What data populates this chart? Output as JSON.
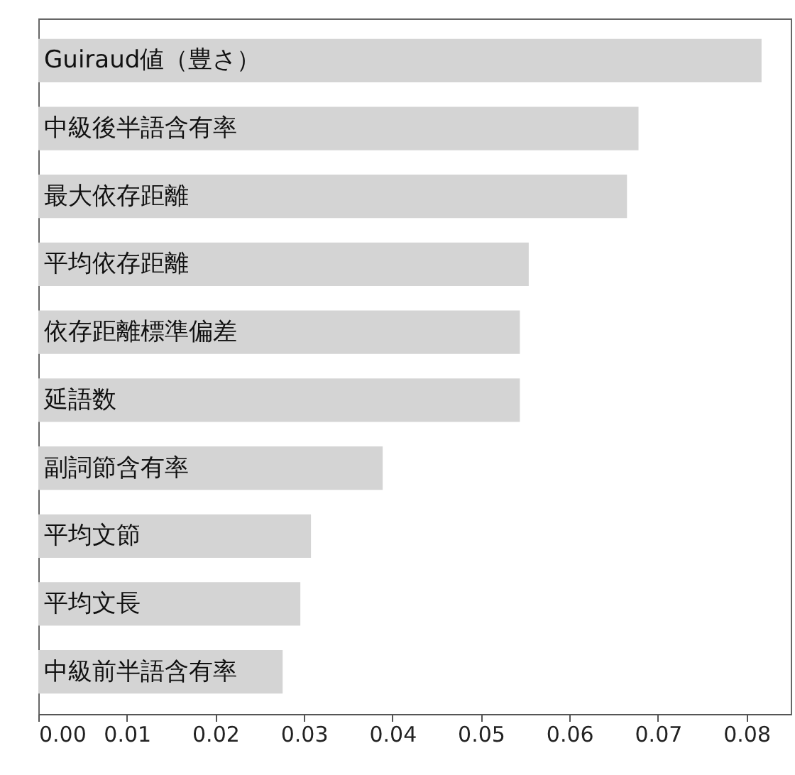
{
  "chart_data": {
    "type": "bar",
    "orientation": "horizontal",
    "categories": [
      "Guiraud値（豊さ）",
      "中級後半語含有率",
      "最大依存距離",
      "平均依存距離",
      "依存距離標準偏差",
      "延語数",
      "副詞節含有率",
      "平均文節",
      "平均文長",
      "中級前半語含有率"
    ],
    "values": [
      0.0817,
      0.0678,
      0.0665,
      0.0554,
      0.0544,
      0.0544,
      0.0389,
      0.0308,
      0.0296,
      0.0276
    ],
    "color": "#d4d4d4",
    "xlim": [
      0,
      0.085
    ],
    "xticks": [
      {
        "value": 0,
        "label": "0.00"
      },
      0.01,
      0.02,
      0.03,
      0.04,
      0.05,
      0.06,
      0.07,
      0.08
    ],
    "grid": false
  }
}
